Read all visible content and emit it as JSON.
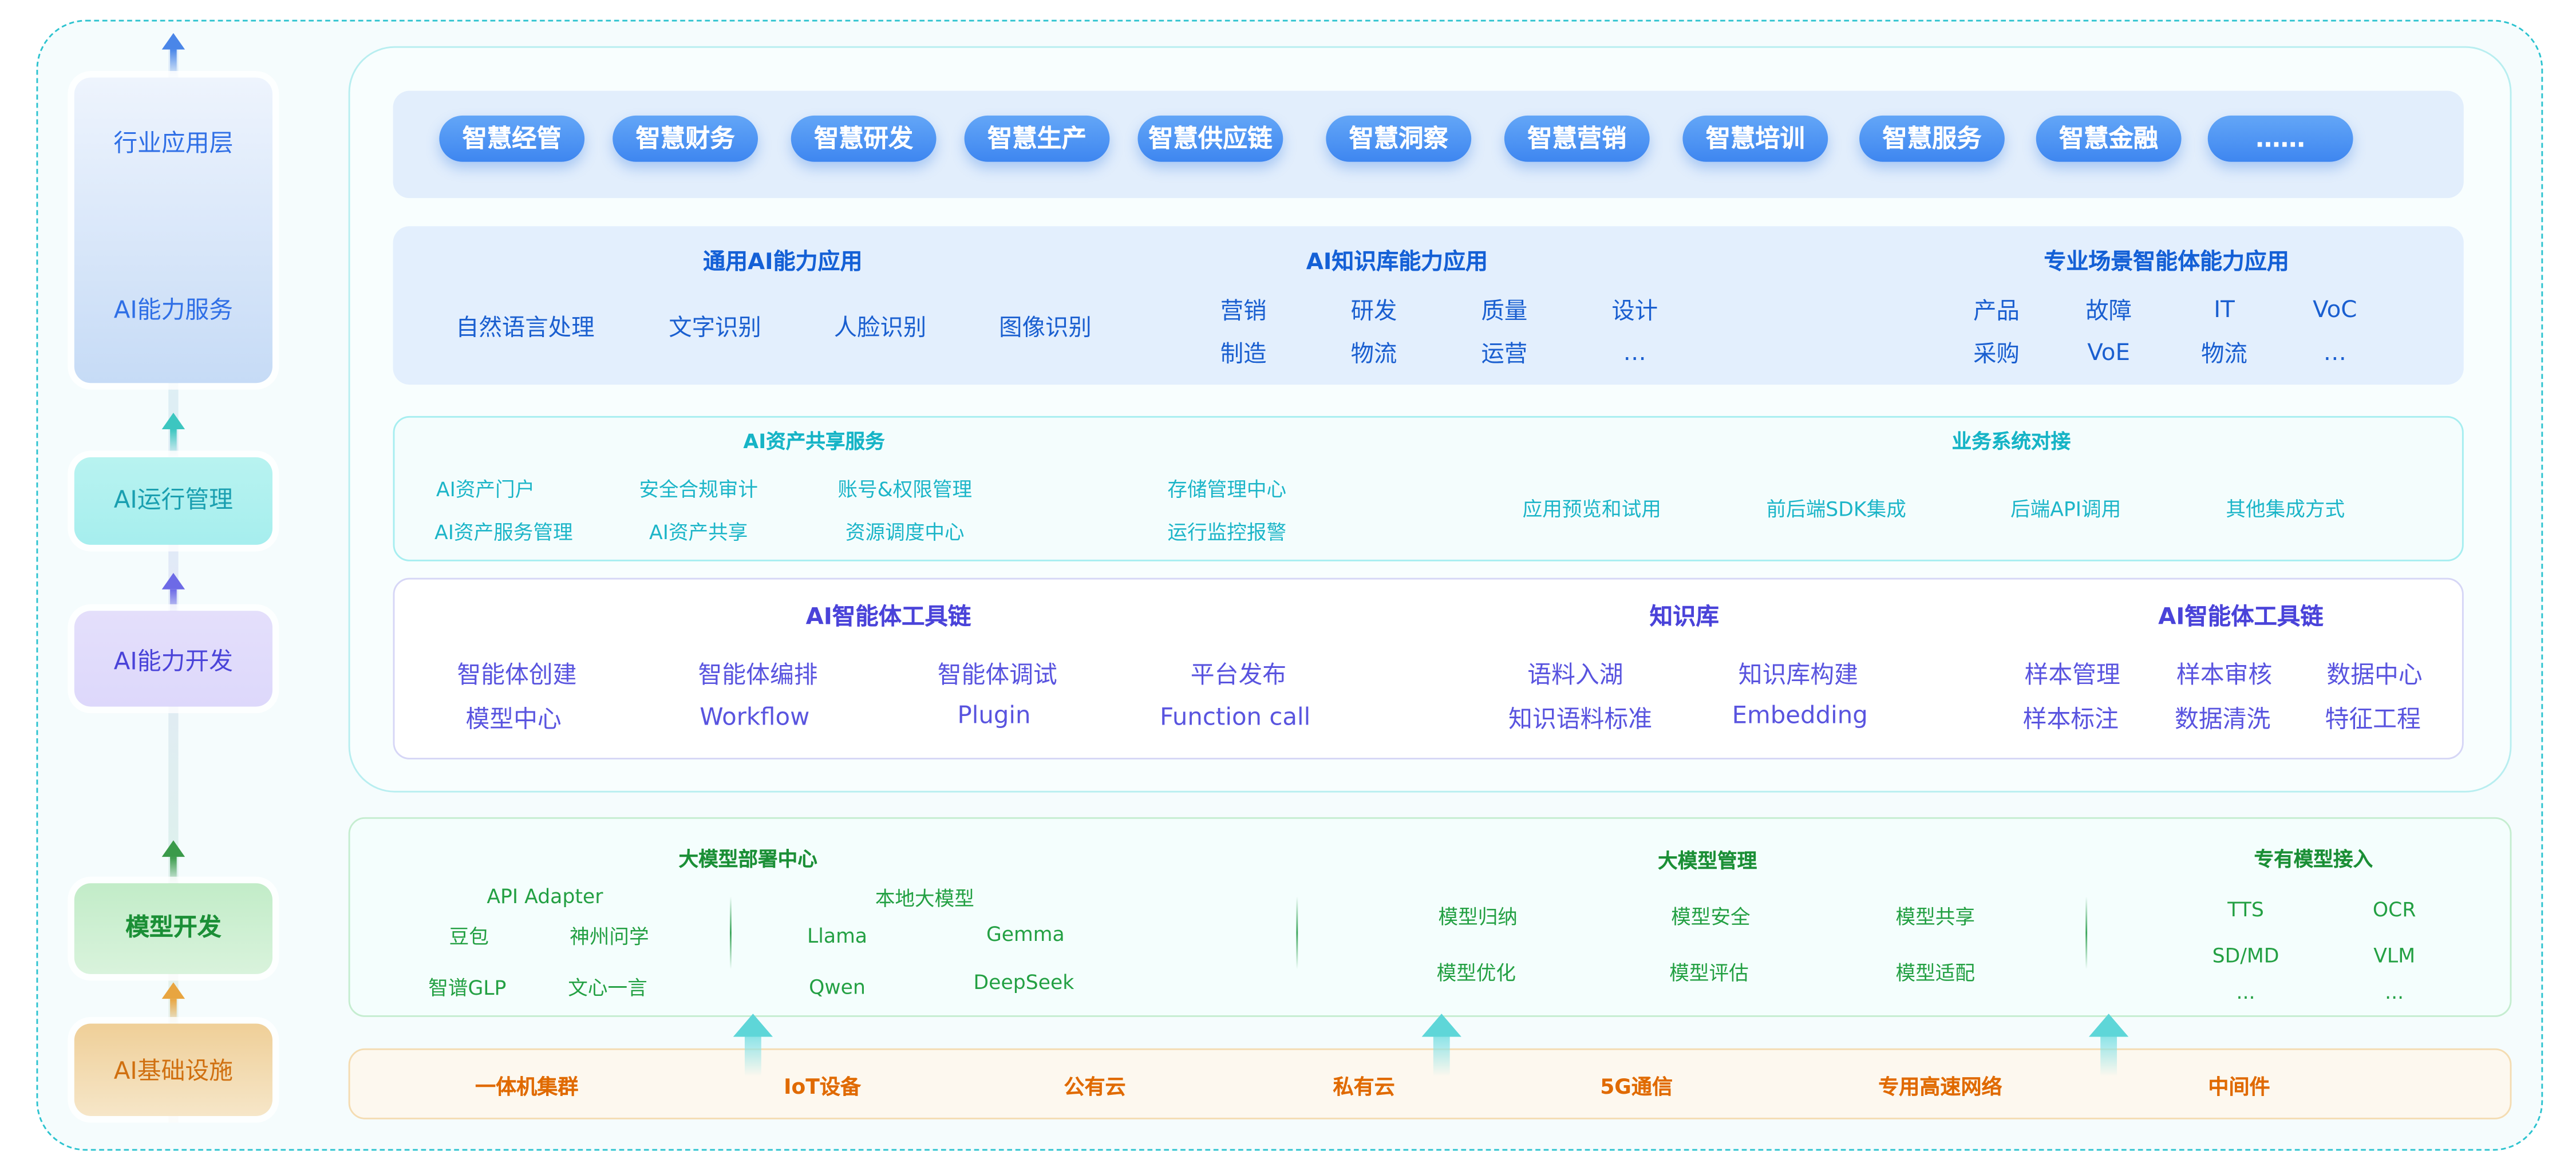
{
  "sidebar": {
    "layers": [
      "行业应用层",
      "AI能力服务",
      "AI运行管理",
      "AI能力开发",
      "模型开发",
      "AI基础设施"
    ]
  },
  "apps": {
    "pills": [
      "智慧经管",
      "智慧财务",
      "智慧研发",
      "智慧生产",
      "智慧供应链",
      "智慧洞察",
      "智慧营销",
      "智慧培训",
      "智慧服务",
      "智慧金融",
      "……"
    ]
  },
  "capability": {
    "general": {
      "title": "通用AI能力应用",
      "items": [
        "自然语言处理",
        "文字识别",
        "人脸识别",
        "图像识别"
      ]
    },
    "knowledge": {
      "title": "AI知识库能力应用",
      "items": [
        "营销",
        "研发",
        "质量",
        "设计",
        "制造",
        "物流",
        "运营",
        "…"
      ]
    },
    "scenario": {
      "title": "专业场景智能体能力应用",
      "items": [
        "产品",
        "故障",
        "IT",
        "VoC",
        "采购",
        "VoE",
        "物流",
        "…"
      ]
    }
  },
  "operations": {
    "asset_sharing": {
      "title": "AI资产共享服务",
      "items": [
        "AI资产门户",
        "AI资产服务管理",
        "安全合规审计",
        "AI资产共享",
        "账号&权限管理",
        "资源调度中心",
        "存储管理中心",
        "运行监控报警"
      ]
    },
    "integration": {
      "title": "业务系统对接",
      "items": [
        "应用预览和试用",
        "前后端SDK集成",
        "后端API调用",
        "其他集成方式"
      ]
    }
  },
  "devtools": {
    "agent_toolchain": {
      "title": "AI智能体工具链",
      "items": [
        "智能体创建",
        "模型中心",
        "智能体编排",
        "Workflow",
        "智能体调试",
        "Plugin",
        "平台发布",
        "Function call"
      ]
    },
    "knowledge_base": {
      "title": "知识库",
      "items": [
        "语料入湖",
        "知识语料标准",
        "知识库构建",
        "Embedding"
      ]
    },
    "data_toolchain": {
      "title": "AI智能体工具链",
      "items": [
        "样本管理",
        "样本标注",
        "样本审核",
        "数据清洗",
        "数据中心",
        "特征工程"
      ]
    }
  },
  "models": {
    "deployment": {
      "title": "大模型部署中心",
      "items": [
        "API Adapter",
        "豆包",
        "神州问学",
        "智谱GLP",
        "文心一言"
      ],
      "local": {
        "title": "本地大模型",
        "items": [
          "Llama",
          "Gemma",
          "Qwen",
          "DeepSeek"
        ]
      }
    },
    "management": {
      "title": "大模型管理",
      "items": [
        "模型归纳",
        "模型安全",
        "模型共享",
        "模型优化",
        "模型评估",
        "模型适配"
      ]
    },
    "proprietary": {
      "title": "专有模型接入",
      "items": [
        "TTS",
        "OCR",
        "SD/MD",
        "VLM",
        "...",
        "..."
      ]
    }
  },
  "infra": {
    "items": [
      "一体机集群",
      "IoT设备",
      "公有云",
      "私有云",
      "5G通信",
      "专用高速网络",
      "中间件"
    ]
  },
  "colors": {
    "border_dashed": "#2cc3cf",
    "app_blue": "#1460d6",
    "ops_cyan": "#16b4c6",
    "dev_purple": "#4a43d9",
    "model_green": "#1b8f36",
    "infra_orange": "#e06a00"
  }
}
